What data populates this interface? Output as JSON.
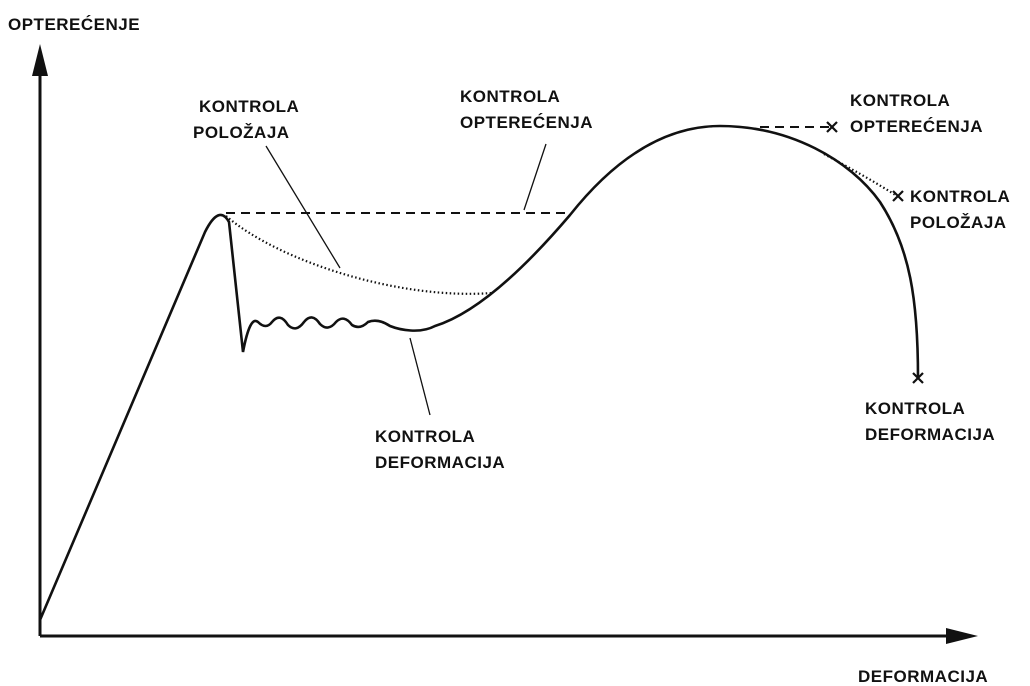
{
  "axes": {
    "y_label": "OPTEREĆENJE",
    "x_label": "DEFORMACIJA"
  },
  "annotations": [
    {
      "lines": [
        "KONTROLA",
        "POLOŽAJA"
      ]
    },
    {
      "lines": [
        "KONTROLA",
        "OPTEREĆENJA"
      ]
    },
    {
      "lines": [
        "KONTROLA",
        "DEFORMACIJA"
      ]
    },
    {
      "lines": [
        "KONTROLA",
        "OPTEREĆENJA"
      ]
    },
    {
      "lines": [
        "KONTROLA",
        "POLOŽAJA"
      ]
    },
    {
      "lines": [
        "KONTROLA",
        "DEFORMACIJA"
      ]
    }
  ]
}
